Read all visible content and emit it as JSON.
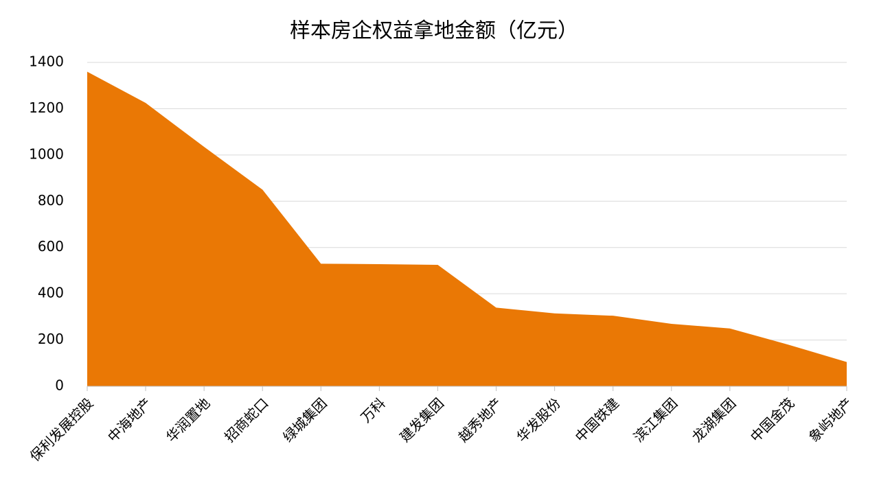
{
  "chart_data": {
    "type": "area",
    "title": "样本房企权益拿地金额（亿元）",
    "categories": [
      "保利发展控股",
      "中海地产",
      "华润置地",
      "招商蛇口",
      "绿城集团",
      "万科",
      "建发集团",
      "越秀地产",
      "华发股份",
      "中国铁建",
      "滨江集团",
      "龙湖集团",
      "中国金茂",
      "象屿地产"
    ],
    "values": [
      1360,
      1225,
      1035,
      850,
      530,
      528,
      525,
      340,
      315,
      305,
      270,
      250,
      180,
      105
    ],
    "color": "#ea7805",
    "ylim": [
      0,
      1400
    ],
    "yticks": [
      0,
      200,
      400,
      600,
      800,
      1000,
      1200,
      1400
    ],
    "grid": true
  }
}
